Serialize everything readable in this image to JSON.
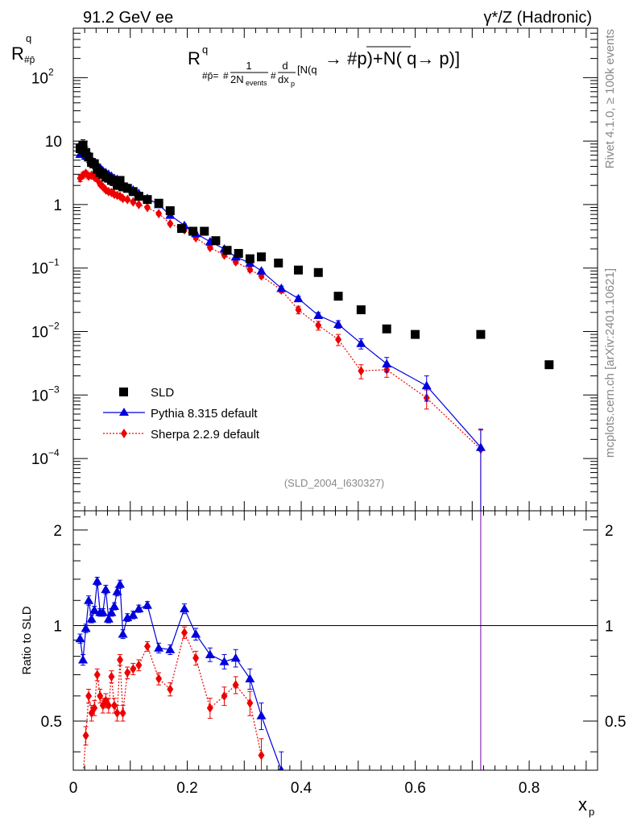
{
  "header": {
    "left": "91.2 GeV ee",
    "right": "γ*/Z (Hadronic)"
  },
  "side_labels": {
    "top": "Rivet 4.1.0, ≥ 100k events",
    "bottom": "mcplots.cern.ch [arXiv:2401.10621]"
  },
  "analysis_id": "(SLD_2004_I630327)",
  "formula": {
    "lhs": "R",
    "lhs_sup": "q",
    "lhs_sub": "#p̄=",
    "sub_a": "#",
    "frac1_num": "1",
    "frac1_den": "2N",
    "frac1_den_sub": "events",
    "sub_b": "#",
    "frac2_num": "d",
    "frac2_den": "dx",
    "frac2_den_sub": "p",
    "tail_small": "[N(q",
    "tail_big": "→  #p)+N( q→  p)]"
  },
  "colors": {
    "sld": "#000000",
    "pythia": "#0000dd",
    "sherpa": "#ee0000"
  },
  "chart_data": [
    {
      "type": "scatter",
      "name": "main",
      "title": "",
      "ylabel": "R",
      "ylabel_sup": "q",
      "ylabel_sub": "#p̄",
      "xlabel": "x",
      "xlabel_sub": "p",
      "xlim": [
        0,
        0.92
      ],
      "ylim": [
        1.5e-05,
        600
      ],
      "yscale": "log",
      "y_ticks": [
        {
          "value": 0.0001,
          "label": "10",
          "exp": "−4"
        },
        {
          "value": 0.001,
          "label": "10",
          "exp": "−3"
        },
        {
          "value": 0.01,
          "label": "10",
          "exp": "−2"
        },
        {
          "value": 0.1,
          "label": "10",
          "exp": "−1"
        },
        {
          "value": 1,
          "label": "1",
          "exp": ""
        },
        {
          "value": 10,
          "label": "10",
          "exp": ""
        },
        {
          "value": 100,
          "label": "10",
          "exp": "2"
        }
      ],
      "legend": [
        {
          "label": "SLD",
          "series": "SLD",
          "marker": "square"
        },
        {
          "label": "Pythia 8.315 default",
          "series": "Pythia",
          "marker": "triangle"
        },
        {
          "label": "Sherpa 2.2.9 default",
          "series": "Sherpa",
          "marker": "diamond"
        }
      ],
      "legend_position": "bottom-left",
      "series": [
        {
          "name": "SLD",
          "marker": "square",
          "x": [
            0.012,
            0.017,
            0.022,
            0.027,
            0.032,
            0.037,
            0.042,
            0.047,
            0.052,
            0.057,
            0.062,
            0.067,
            0.072,
            0.077,
            0.082,
            0.087,
            0.095,
            0.105,
            0.115,
            0.13,
            0.15,
            0.17,
            0.19,
            0.21,
            0.23,
            0.25,
            0.27,
            0.29,
            0.31,
            0.33,
            0.36,
            0.395,
            0.43,
            0.465,
            0.505,
            0.55,
            0.6,
            0.715,
            0.835
          ],
          "values": [
            7.6,
            8.6,
            6.6,
            5.6,
            4.6,
            4.4,
            3.6,
            3.2,
            3.0,
            2.7,
            2.6,
            2.4,
            2.3,
            2.0,
            2.4,
            1.9,
            1.8,
            1.6,
            1.35,
            1.2,
            1.05,
            0.8,
            0.42,
            0.38,
            0.38,
            0.27,
            0.19,
            0.17,
            0.14,
            0.15,
            0.12,
            0.093,
            0.085,
            0.036,
            0.022,
            0.011,
            0.009,
            0.009,
            0.003
          ],
          "errors": [
            1.6,
            1.9,
            1.5,
            1.0,
            0.8,
            0.7,
            0.5,
            0.4,
            0.4,
            0.3,
            0.3,
            0.3,
            0.3,
            0.2,
            0.3,
            0.2,
            0.2,
            0.15,
            0.1,
            0.1,
            0.08,
            0.06,
            0.03,
            0.03,
            0.03,
            0.02,
            0.015,
            0.012,
            0.01,
            0.01,
            0.008,
            0.007,
            0.006,
            0.003,
            0.002,
            0.001,
            0.0008,
            0.0008,
            0.0003
          ]
        },
        {
          "name": "Pythia",
          "marker": "triangle",
          "x": [
            0.012,
            0.017,
            0.022,
            0.027,
            0.032,
            0.037,
            0.042,
            0.047,
            0.052,
            0.057,
            0.062,
            0.067,
            0.072,
            0.077,
            0.082,
            0.087,
            0.095,
            0.105,
            0.115,
            0.13,
            0.15,
            0.17,
            0.195,
            0.215,
            0.24,
            0.265,
            0.285,
            0.31,
            0.33,
            0.365,
            0.395,
            0.43,
            0.465,
            0.505,
            0.55,
            0.62,
            0.715
          ],
          "values": [
            6.2,
            6.5,
            5.8,
            5.6,
            5.0,
            4.4,
            4.2,
            3.8,
            3.4,
            3.2,
            3.0,
            2.8,
            2.6,
            2.5,
            2.4,
            2.1,
            1.9,
            1.7,
            1.5,
            1.25,
            1.0,
            0.68,
            0.47,
            0.35,
            0.26,
            0.2,
            0.15,
            0.12,
            0.09,
            0.048,
            0.033,
            0.018,
            0.013,
            0.0065,
            0.0031,
            0.0014,
            0.00015
          ],
          "errors": [
            0.4,
            0.4,
            0.3,
            0.3,
            0.3,
            0.25,
            0.2,
            0.2,
            0.2,
            0.15,
            0.15,
            0.15,
            0.12,
            0.12,
            0.12,
            0.1,
            0.08,
            0.07,
            0.06,
            0.05,
            0.04,
            0.03,
            0.025,
            0.02,
            0.015,
            0.012,
            0.01,
            0.008,
            0.006,
            0.004,
            0.003,
            0.002,
            0.0018,
            0.0012,
            0.0008,
            0.0006,
            0.00014
          ]
        },
        {
          "name": "Sherpa",
          "marker": "diamond",
          "x": [
            0.012,
            0.017,
            0.022,
            0.027,
            0.032,
            0.037,
            0.042,
            0.047,
            0.052,
            0.057,
            0.062,
            0.067,
            0.072,
            0.077,
            0.082,
            0.087,
            0.095,
            0.105,
            0.115,
            0.13,
            0.15,
            0.17,
            0.195,
            0.215,
            0.24,
            0.265,
            0.285,
            0.31,
            0.33,
            0.365,
            0.395,
            0.43,
            0.465,
            0.505,
            0.55,
            0.62,
            0.715
          ],
          "values": [
            2.6,
            2.9,
            3.1,
            2.8,
            2.9,
            2.7,
            2.5,
            2.1,
            1.9,
            1.7,
            1.6,
            1.55,
            1.45,
            1.4,
            1.35,
            1.25,
            1.2,
            1.1,
            1.0,
            0.9,
            0.72,
            0.5,
            0.4,
            0.3,
            0.21,
            0.16,
            0.125,
            0.095,
            0.075,
            0.045,
            0.022,
            0.0125,
            0.0075,
            0.0024,
            0.0025,
            0.0009,
            0.00014
          ],
          "errors": [
            0.3,
            0.3,
            0.3,
            0.25,
            0.25,
            0.2,
            0.2,
            0.15,
            0.15,
            0.12,
            0.12,
            0.12,
            0.1,
            0.1,
            0.1,
            0.1,
            0.08,
            0.07,
            0.06,
            0.05,
            0.04,
            0.03,
            0.025,
            0.02,
            0.015,
            0.012,
            0.01,
            0.008,
            0.006,
            0.004,
            0.003,
            0.002,
            0.0015,
            0.0006,
            0.0006,
            0.0003,
            0.00014
          ]
        }
      ]
    },
    {
      "type": "scatter",
      "name": "ratio",
      "ylabel": "Ratio to SLD",
      "xlabel": "x",
      "xlabel_sub": "p",
      "xlim": [
        0,
        0.92
      ],
      "ylim": [
        0.35,
        2.3
      ],
      "yscale": "log",
      "y_ticks": [
        {
          "value": 0.5,
          "label": "0.5"
        },
        {
          "value": 1,
          "label": "1"
        },
        {
          "value": 2,
          "label": "2"
        }
      ],
      "x_ticks": [
        {
          "value": 0,
          "label": "0"
        },
        {
          "value": 0.2,
          "label": "0.2"
        },
        {
          "value": 0.4,
          "label": "0.4"
        },
        {
          "value": 0.6,
          "label": "0.6"
        },
        {
          "value": 0.8,
          "label": "0.8"
        }
      ],
      "reference_line": 1,
      "series": [
        {
          "name": "Pythia",
          "marker": "triangle",
          "x": [
            0.012,
            0.017,
            0.022,
            0.027,
            0.032,
            0.037,
            0.042,
            0.047,
            0.052,
            0.057,
            0.062,
            0.067,
            0.072,
            0.077,
            0.082,
            0.087,
            0.095,
            0.105,
            0.115,
            0.13,
            0.15,
            0.17,
            0.195,
            0.215,
            0.24,
            0.265,
            0.285,
            0.31,
            0.33,
            0.365
          ],
          "values": [
            0.91,
            0.78,
            0.98,
            1.2,
            1.05,
            1.12,
            1.38,
            1.1,
            1.1,
            1.3,
            1.05,
            1.1,
            1.15,
            1.28,
            1.35,
            0.94,
            1.06,
            1.08,
            1.13,
            1.16,
            0.85,
            0.84,
            1.13,
            0.94,
            0.81,
            0.77,
            0.79,
            0.68,
            0.52,
            0.35
          ],
          "errors": [
            0.03,
            0.03,
            0.03,
            0.04,
            0.03,
            0.03,
            0.04,
            0.03,
            0.03,
            0.04,
            0.03,
            0.03,
            0.03,
            0.04,
            0.04,
            0.03,
            0.03,
            0.03,
            0.03,
            0.03,
            0.03,
            0.03,
            0.04,
            0.04,
            0.04,
            0.04,
            0.05,
            0.05,
            0.05,
            0.05
          ]
        },
        {
          "name": "Sherpa",
          "marker": "diamond",
          "x": [
            0.012,
            0.017,
            0.022,
            0.027,
            0.032,
            0.037,
            0.042,
            0.047,
            0.052,
            0.057,
            0.062,
            0.067,
            0.072,
            0.077,
            0.082,
            0.087,
            0.095,
            0.105,
            0.115,
            0.13,
            0.15,
            0.17,
            0.195,
            0.215,
            0.24,
            0.265,
            0.285,
            0.31,
            0.33
          ],
          "values": [
            0.33,
            0.33,
            0.45,
            0.6,
            0.53,
            0.55,
            0.7,
            0.6,
            0.56,
            0.58,
            0.56,
            0.69,
            0.56,
            0.53,
            0.78,
            0.53,
            0.71,
            0.73,
            0.75,
            0.86,
            0.68,
            0.63,
            0.95,
            0.79,
            0.55,
            0.6,
            0.65,
            0.57,
            0.39
          ],
          "errors": [
            0.03,
            0.03,
            0.03,
            0.03,
            0.03,
            0.03,
            0.03,
            0.03,
            0.03,
            0.03,
            0.03,
            0.03,
            0.03,
            0.03,
            0.03,
            0.03,
            0.03,
            0.03,
            0.03,
            0.03,
            0.03,
            0.03,
            0.04,
            0.04,
            0.04,
            0.04,
            0.04,
            0.05,
            0.05
          ]
        }
      ]
    }
  ]
}
